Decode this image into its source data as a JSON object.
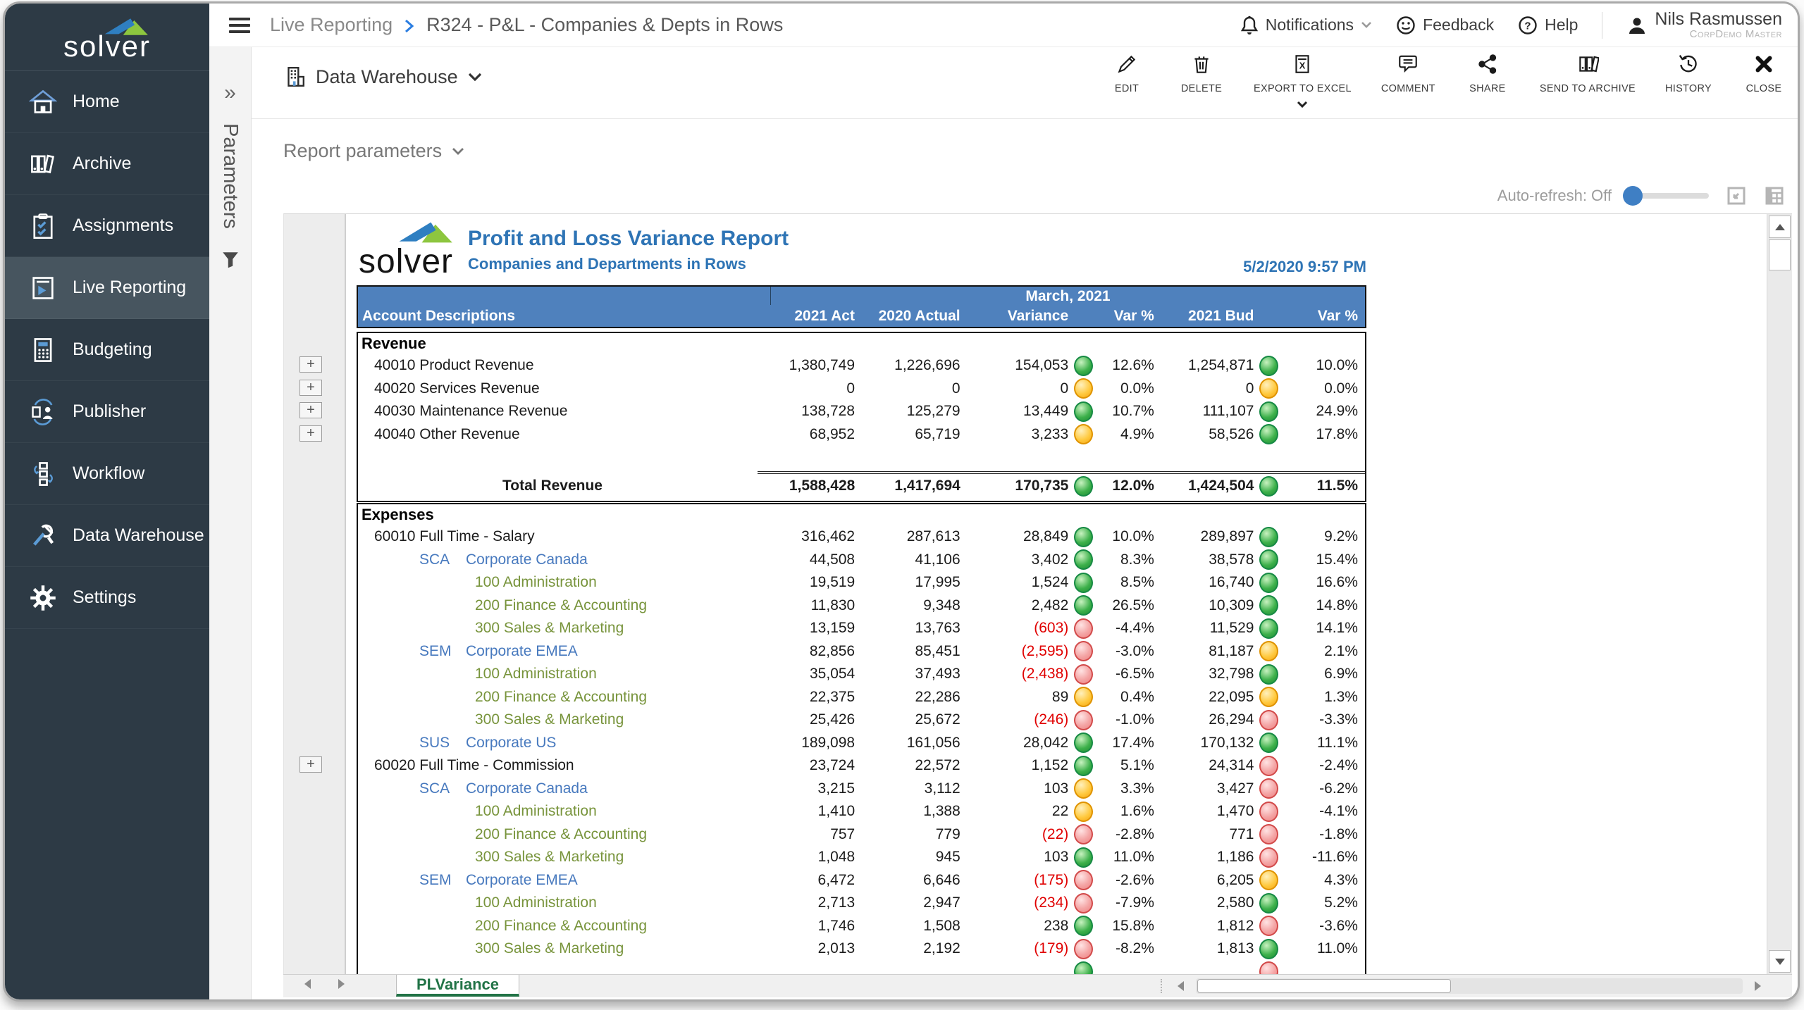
{
  "colors": {
    "sidebar_bg": "#2d3a45",
    "sidebar_active": "#47555f",
    "accent_blue": "#3f7fc4",
    "header_blue": "#4f81bd",
    "title_blue": "#2e74b5",
    "company_blue": "#4779be",
    "department_green": "#78943c",
    "negative_red": "#e00000",
    "tab_green": "#217346"
  },
  "sidebar": {
    "logo_text": "solver",
    "items": [
      {
        "label": "Home",
        "icon": "home-icon",
        "active": false
      },
      {
        "label": "Archive",
        "icon": "archive-icon",
        "active": false
      },
      {
        "label": "Assignments",
        "icon": "assignments-icon",
        "active": false
      },
      {
        "label": "Live Reporting",
        "icon": "live-reporting-icon",
        "active": true
      },
      {
        "label": "Budgeting",
        "icon": "budgeting-icon",
        "active": false
      },
      {
        "label": "Publisher",
        "icon": "publisher-icon",
        "active": false
      },
      {
        "label": "Workflow",
        "icon": "workflow-icon",
        "active": false
      },
      {
        "label": "Data Warehouse",
        "icon": "data-warehouse-icon",
        "active": false
      },
      {
        "label": "Settings",
        "icon": "settings-icon",
        "active": false
      }
    ]
  },
  "topbar": {
    "breadcrumb": {
      "section": "Live Reporting",
      "page": "R324 - P&L - Companies & Depts in Rows"
    },
    "notifications_label": "Notifications",
    "feedback_label": "Feedback",
    "help_label": "Help",
    "user": {
      "name": "Nils Rasmussen",
      "role": "CorpDemo Master"
    }
  },
  "toolbar": {
    "source_label": "Data Warehouse",
    "actions": [
      {
        "label": "EDIT",
        "icon": "edit-icon"
      },
      {
        "label": "DELETE",
        "icon": "delete-icon"
      },
      {
        "label": "EXPORT TO EXCEL",
        "icon": "export-excel-icon",
        "has_menu": true
      },
      {
        "label": "COMMENT",
        "icon": "comment-icon"
      },
      {
        "label": "SHARE",
        "icon": "share-icon"
      },
      {
        "label": "SEND TO ARCHIVE",
        "icon": "send-archive-icon"
      },
      {
        "label": "HISTORY",
        "icon": "history-icon"
      },
      {
        "label": "CLOSE",
        "icon": "close-icon"
      }
    ]
  },
  "parameters_panel": {
    "tab_label": "Parameters"
  },
  "report_parameters_label": "Report parameters",
  "autorefresh_label": "Auto-refresh: Off",
  "report": {
    "logo_text": "solver",
    "title": "Profit and Loss Variance Report",
    "subtitle": "Companies and Departments in Rows",
    "timestamp": "5/2/2020 9:57 PM",
    "period_header": "March, 2021",
    "columns": [
      "Account Descriptions",
      "2021 Act",
      "2020 Actual",
      "Variance",
      "Var %",
      "2021 Bud",
      "Var %"
    ],
    "expand_glyph": "+",
    "sheet_tab": "PLVariance",
    "sections": [
      {
        "name": "Revenue",
        "rows": [
          {
            "type": "account",
            "label": "40010 Product Revenue",
            "values": [
              "1,380,749",
              "1,226,696",
              "154,053",
              "12.6%",
              "1,254,871",
              "10.0%"
            ],
            "variance_icon": "green",
            "bud_icon": "green"
          },
          {
            "type": "account",
            "label": "40020 Services Revenue",
            "values": [
              "0",
              "0",
              "0",
              "0.0%",
              "0",
              "0.0%"
            ],
            "variance_icon": "yellow",
            "bud_icon": "yellow"
          },
          {
            "type": "account",
            "label": "40030 Maintenance Revenue",
            "values": [
              "138,728",
              "125,279",
              "13,449",
              "10.7%",
              "111,107",
              "24.9%"
            ],
            "variance_icon": "green",
            "bud_icon": "green"
          },
          {
            "type": "account",
            "label": "40040 Other Revenue",
            "values": [
              "68,952",
              "65,719",
              "3,233",
              "4.9%",
              "58,526",
              "17.8%"
            ],
            "variance_icon": "yellow",
            "bud_icon": "green"
          }
        ],
        "total": {
          "label": "Total Revenue",
          "values": [
            "1,588,428",
            "1,417,694",
            "170,735",
            "12.0%",
            "1,424,504",
            "11.5%"
          ],
          "variance_icon": "green",
          "bud_icon": "green"
        }
      },
      {
        "name": "Expenses",
        "rows": [
          {
            "type": "account",
            "label": "60010 Full Time - Salary",
            "values": [
              "316,462",
              "287,613",
              "28,849",
              "10.0%",
              "289,897",
              "9.2%"
            ],
            "variance_icon": "green",
            "bud_icon": "green"
          },
          {
            "type": "company",
            "code": "SCA",
            "label": "Corporate Canada",
            "values": [
              "44,508",
              "41,106",
              "3,402",
              "8.3%",
              "38,578",
              "15.4%"
            ],
            "variance_icon": "green",
            "bud_icon": "green"
          },
          {
            "type": "department",
            "label": "100 Administration",
            "values": [
              "19,519",
              "17,995",
              "1,524",
              "8.5%",
              "16,740",
              "16.6%"
            ],
            "variance_icon": "green",
            "bud_icon": "green"
          },
          {
            "type": "department",
            "label": "200 Finance & Accounting",
            "values": [
              "11,830",
              "9,348",
              "2,482",
              "26.5%",
              "10,309",
              "14.8%"
            ],
            "variance_icon": "green",
            "bud_icon": "green"
          },
          {
            "type": "department",
            "label": "300 Sales & Marketing",
            "values": [
              "13,159",
              "13,763",
              "(603)",
              "-4.4%",
              "11,529",
              "14.1%"
            ],
            "variance_icon": "red",
            "bud_icon": "green"
          },
          {
            "type": "company",
            "code": "SEM",
            "label": "Corporate EMEA",
            "values": [
              "82,856",
              "85,451",
              "(2,595)",
              "-3.0%",
              "81,187",
              "2.1%"
            ],
            "variance_icon": "red",
            "bud_icon": "yellow"
          },
          {
            "type": "department",
            "label": "100 Administration",
            "values": [
              "35,054",
              "37,493",
              "(2,438)",
              "-6.5%",
              "32,798",
              "6.9%"
            ],
            "variance_icon": "red",
            "bud_icon": "green"
          },
          {
            "type": "department",
            "label": "200 Finance & Accounting",
            "values": [
              "22,375",
              "22,286",
              "89",
              "0.4%",
              "22,095",
              "1.3%"
            ],
            "variance_icon": "yellow",
            "bud_icon": "yellow"
          },
          {
            "type": "department",
            "label": "300 Sales & Marketing",
            "values": [
              "25,426",
              "25,672",
              "(246)",
              "-1.0%",
              "26,294",
              "-3.3%"
            ],
            "variance_icon": "red",
            "bud_icon": "red"
          },
          {
            "type": "company",
            "code": "SUS",
            "label": "Corporate US",
            "values": [
              "189,098",
              "161,056",
              "28,042",
              "17.4%",
              "170,132",
              "11.1%"
            ],
            "variance_icon": "green",
            "bud_icon": "green"
          },
          {
            "type": "account",
            "label": "60020 Full Time - Commission",
            "values": [
              "23,724",
              "22,572",
              "1,152",
              "5.1%",
              "24,314",
              "-2.4%"
            ],
            "variance_icon": "green",
            "bud_icon": "red"
          },
          {
            "type": "company",
            "code": "SCA",
            "label": "Corporate Canada",
            "values": [
              "3,215",
              "3,112",
              "103",
              "3.3%",
              "3,427",
              "-6.2%"
            ],
            "variance_icon": "yellow",
            "bud_icon": "red"
          },
          {
            "type": "department",
            "label": "100 Administration",
            "values": [
              "1,410",
              "1,388",
              "22",
              "1.6%",
              "1,470",
              "-4.1%"
            ],
            "variance_icon": "yellow",
            "bud_icon": "red"
          },
          {
            "type": "department",
            "label": "200 Finance & Accounting",
            "values": [
              "757",
              "779",
              "(22)",
              "-2.8%",
              "771",
              "-1.8%"
            ],
            "variance_icon": "red",
            "bud_icon": "red"
          },
          {
            "type": "department",
            "label": "300 Sales & Marketing",
            "values": [
              "1,048",
              "945",
              "103",
              "11.0%",
              "1,186",
              "-11.6%"
            ],
            "variance_icon": "green",
            "bud_icon": "red"
          },
          {
            "type": "company",
            "code": "SEM",
            "label": "Corporate EMEA",
            "values": [
              "6,472",
              "6,646",
              "(175)",
              "-2.6%",
              "6,205",
              "4.3%"
            ],
            "variance_icon": "red",
            "bud_icon": "yellow"
          },
          {
            "type": "department",
            "label": "100 Administration",
            "values": [
              "2,713",
              "2,947",
              "(234)",
              "-7.9%",
              "2,580",
              "5.2%"
            ],
            "variance_icon": "red",
            "bud_icon": "green"
          },
          {
            "type": "department",
            "label": "200 Finance & Accounting",
            "values": [
              "1,746",
              "1,508",
              "238",
              "15.8%",
              "1,812",
              "-3.6%"
            ],
            "variance_icon": "green",
            "bud_icon": "red"
          },
          {
            "type": "department",
            "label": "300 Sales & Marketing",
            "values": [
              "2,013",
              "2,192",
              "(179)",
              "-8.2%",
              "1,813",
              "11.0%"
            ],
            "variance_icon": "red",
            "bud_icon": "green"
          }
        ],
        "partial_row": {
          "variance_icon": "green",
          "bud_icon": "red"
        }
      }
    ]
  }
}
